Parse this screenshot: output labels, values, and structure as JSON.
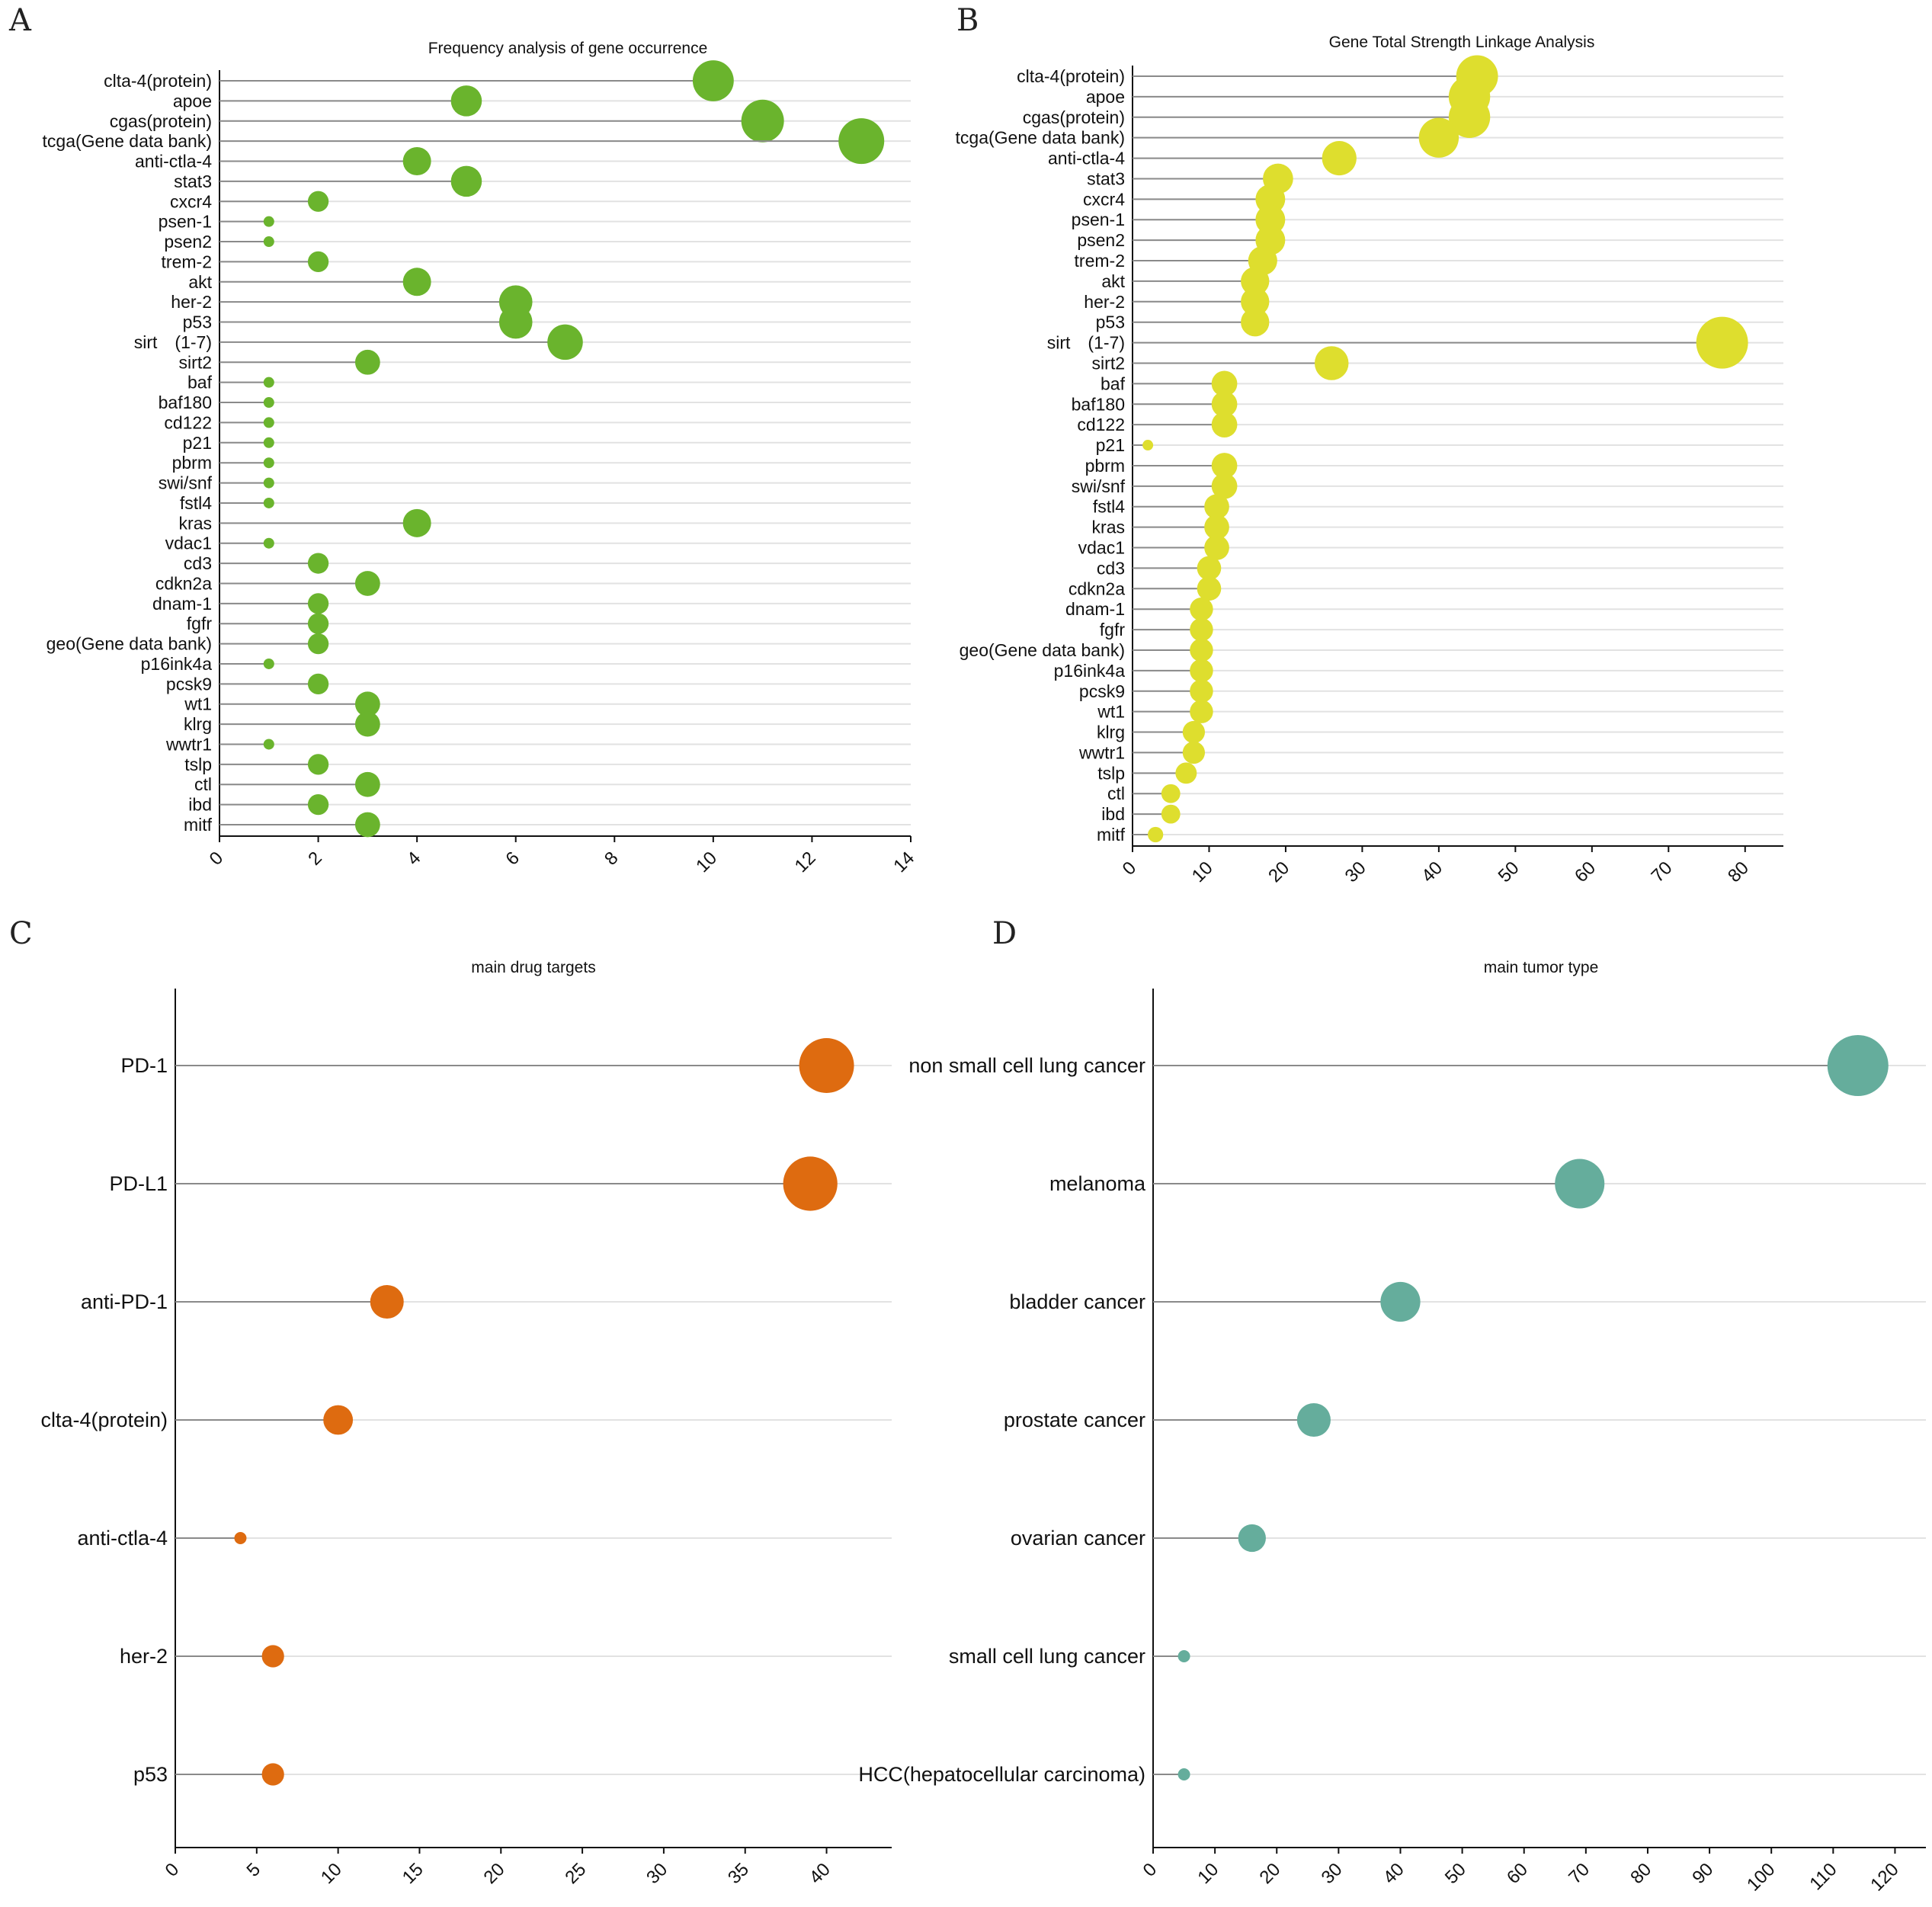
{
  "chart_data": [
    {
      "panel": "A",
      "type": "lollipop",
      "title": "Frequency analysis of gene occurrence",
      "color": "#6ab42d",
      "xlim": [
        0,
        14
      ],
      "xticks": [
        0,
        2,
        4,
        6,
        8,
        10,
        12,
        14
      ],
      "categories": [
        "clta-4(protein)",
        "apoe",
        "cgas(protein)",
        "tcga(Gene data bank)",
        "anti-ctla-4",
        "stat3",
        "cxcr4",
        "psen-1",
        "psen2",
        "trem-2",
        "akt",
        "her-2",
        "p53",
        "sirt　(1-7)",
        "sirt2",
        "baf",
        "baf180",
        "cd122",
        "p21",
        "pbrm",
        "swi/snf",
        "fstl4",
        "kras",
        "vdac1",
        "cd3",
        "cdkn2a",
        "dnam-1",
        "fgfr",
        "geo(Gene data bank)",
        "p16ink4a",
        "pcsk9",
        "wt1",
        "klrg",
        "wwtr1",
        "tslp",
        "ctl",
        "ibd",
        "mitf"
      ],
      "values": [
        10,
        5,
        11,
        13,
        4,
        5,
        2,
        1,
        1,
        2,
        4,
        6,
        6,
        7,
        3,
        1,
        1,
        1,
        1,
        1,
        1,
        1,
        4,
        1,
        2,
        3,
        2,
        2,
        2,
        1,
        2,
        3,
        3,
        1,
        2,
        3,
        2,
        3
      ]
    },
    {
      "panel": "B",
      "type": "lollipop",
      "title": "Gene Total Strength Linkage Analysis",
      "color": "#dede2e",
      "xlim": [
        0,
        85
      ],
      "xticks": [
        0,
        10,
        20,
        30,
        40,
        50,
        60,
        70,
        80
      ],
      "categories": [
        "clta-4(protein)",
        "apoe",
        "cgas(protein)",
        "tcga(Gene data bank)",
        "anti-ctla-4",
        "stat3",
        "cxcr4",
        "psen-1",
        "psen2",
        "trem-2",
        "akt",
        "her-2",
        "p53",
        "sirt　(1-7)",
        "sirt2",
        "baf",
        "baf180",
        "cd122",
        "p21",
        "pbrm",
        "swi/snf",
        "fstl4",
        "kras",
        "vdac1",
        "cd3",
        "cdkn2a",
        "dnam-1",
        "fgfr",
        "geo(Gene data bank)",
        "p16ink4a",
        "pcsk9",
        "wt1",
        "klrg",
        "wwtr1",
        "tslp",
        "ctl",
        "ibd",
        "mitf"
      ],
      "values": [
        45,
        44,
        44,
        40,
        27,
        19,
        18,
        18,
        18,
        17,
        16,
        16,
        16,
        77,
        26,
        12,
        12,
        12,
        2,
        12,
        12,
        11,
        11,
        11,
        10,
        10,
        9,
        9,
        9,
        9,
        9,
        9,
        8,
        8,
        7,
        5,
        5,
        3
      ]
    },
    {
      "panel": "C",
      "type": "lollipop",
      "title": "main drug targets",
      "color": "#de6b10",
      "xlim": [
        0,
        44
      ],
      "xticks": [
        0,
        5,
        10,
        15,
        20,
        25,
        30,
        35,
        40
      ],
      "categories": [
        "PD-1",
        "PD-L1",
        "anti-PD-1",
        "clta-4(protein)",
        "anti-ctla-4",
        "her-2",
        "p53"
      ],
      "values": [
        40,
        39,
        13,
        10,
        4,
        6,
        6
      ]
    },
    {
      "panel": "D",
      "type": "lollipop",
      "title": "main tumor type",
      "color": "#65ad9c",
      "xlim": [
        0,
        125
      ],
      "xticks": [
        0,
        10,
        20,
        30,
        40,
        50,
        60,
        70,
        80,
        90,
        100,
        110,
        120
      ],
      "categories": [
        "non small cell lung cancer",
        "melanoma",
        "bladder cancer",
        "prostate cancer",
        "ovarian cancer",
        "small cell lung cancer",
        "HCC(hepatocellular carcinoma)"
      ],
      "values": [
        114,
        69,
        40,
        26,
        16,
        5,
        5
      ]
    }
  ]
}
